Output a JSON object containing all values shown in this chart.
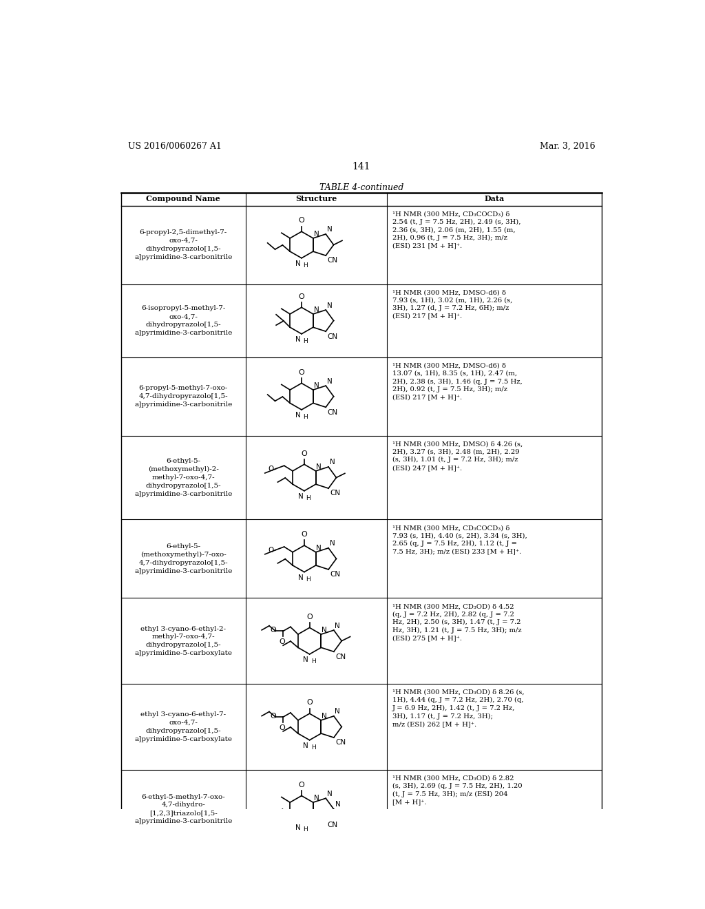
{
  "page_number": "141",
  "patent_number": "US 2016/0060267 A1",
  "patent_date": "Mar. 3, 2016",
  "table_title": "TABLE 4-continued",
  "col_headers": [
    "Compound Name",
    "Structure",
    "Data"
  ],
  "background_color": "#ffffff",
  "rows": [
    {
      "name": "6-propyl-2,5-dimethyl-7-\noxo-4,7-\ndihydropyrazolo[1,5-\na]pyrimidine-3-carbonitrile",
      "data": "¹H NMR (300 MHz, CD₃COCD₃) δ\n2.54 (t, J = 7.5 Hz, 2H), 2.49 (s, 3H),\n2.36 (s, 3H), 2.06 (m, 2H), 1.55 (m,\n2H), 0.96 (t, J = 7.5 Hz, 3H); m/z\n(ESI) 231 [M + H]⁺."
    },
    {
      "name": "6-isopropyl-5-methyl-7-\noxo-4,7-\ndihydropyrazolo[1,5-\na]pyrimidine-3-carbonitrile",
      "data": "¹H NMR (300 MHz, DMSO-d6) δ\n7.93 (s, 1H), 3.02 (m, 1H), 2.26 (s,\n3H), 1.27 (d, J = 7.2 Hz, 6H); m/z\n(ESI) 217 [M + H]⁺."
    },
    {
      "name": "6-propyl-5-methyl-7-oxo-\n4,7-dihydropyrazolo[1,5-\na]pyrimidine-3-carbonitrile",
      "data": "¹H NMR (300 MHz, DMSO-d6) δ\n13.07 (s, 1H), 8.35 (s, 1H), 2.47 (m,\n2H), 2.38 (s, 3H), 1.46 (q, J = 7.5 Hz,\n2H), 0.92 (t, J = 7.5 Hz, 3H); m/z\n(ESI) 217 [M + H]⁺."
    },
    {
      "name": "6-ethyl-5-\n(methoxymethyl)-2-\nmethyl-7-oxo-4,7-\ndihydropyrazolo[1,5-\na]pyrimidine-3-carbonitrile",
      "data": "¹H NMR (300 MHz, DMSO) δ 4.26 (s,\n2H), 3.27 (s, 3H), 2.48 (m, 2H), 2.29\n(s, 3H), 1.01 (t, J = 7.2 Hz, 3H); m/z\n(ESI) 247 [M + H]⁺."
    },
    {
      "name": "6-ethyl-5-\n(methoxymethyl)-7-oxo-\n4,7-dihydropyrazolo[1,5-\na]pyrimidine-3-carbonitrile",
      "data": "¹H NMR (300 MHz, CD₃COCD₃) δ\n7.93 (s, 1H), 4.40 (s, 2H), 3.34 (s, 3H),\n2.65 (q, J = 7.5 Hz, 2H), 1.12 (t, J =\n7.5 Hz, 3H); m/z (ESI) 233 [M + H]⁺."
    },
    {
      "name": "ethyl 3-cyano-6-ethyl-2-\nmethyl-7-oxo-4,7-\ndihydropyrazolo[1,5-\na]pyrimidine-5-carboxylate",
      "data": "¹H NMR (300 MHz, CD₃OD) δ 4.52\n(q, J = 7.2 Hz, 2H), 2.82 (q, J = 7.2\nHz, 2H), 2.50 (s, 3H), 1.47 (t, J = 7.2\nHz, 3H), 1.21 (t, J = 7.5 Hz, 3H); m/z\n(ESI) 275 [M + H]⁺."
    },
    {
      "name": "ethyl 3-cyano-6-ethyl-7-\noxo-4,7-\ndihydropyrazolo[1,5-\na]pyrimidine-5-carboxylate",
      "data": "¹H NMR (300 MHz, CD₃OD) δ 8.26 (s,\n1H), 4.44 (q, J = 7.2 Hz, 2H), 2.70 (q,\nJ = 6.9 Hz, 2H), 1.42 (t, J = 7.2 Hz,\n3H), 1.17 (t, J = 7.2 Hz, 3H);\nm/z (ESI) 262 [M + H]⁺."
    },
    {
      "name": "6-ethyl-5-methyl-7-oxo-\n4,7-dihydro-\n[1,2,3]triazolo[1,5-\na]pyrimidine-3-carbonitrile",
      "data": "¹H NMR (300 MHz, CD₃OD) δ 2.82\n(s, 3H), 2.69 (q, J = 7.5 Hz, 2H), 1.20\n(t, J = 7.5 Hz, 3H); m/z (ESI) 204\n[M + H]⁺."
    }
  ]
}
